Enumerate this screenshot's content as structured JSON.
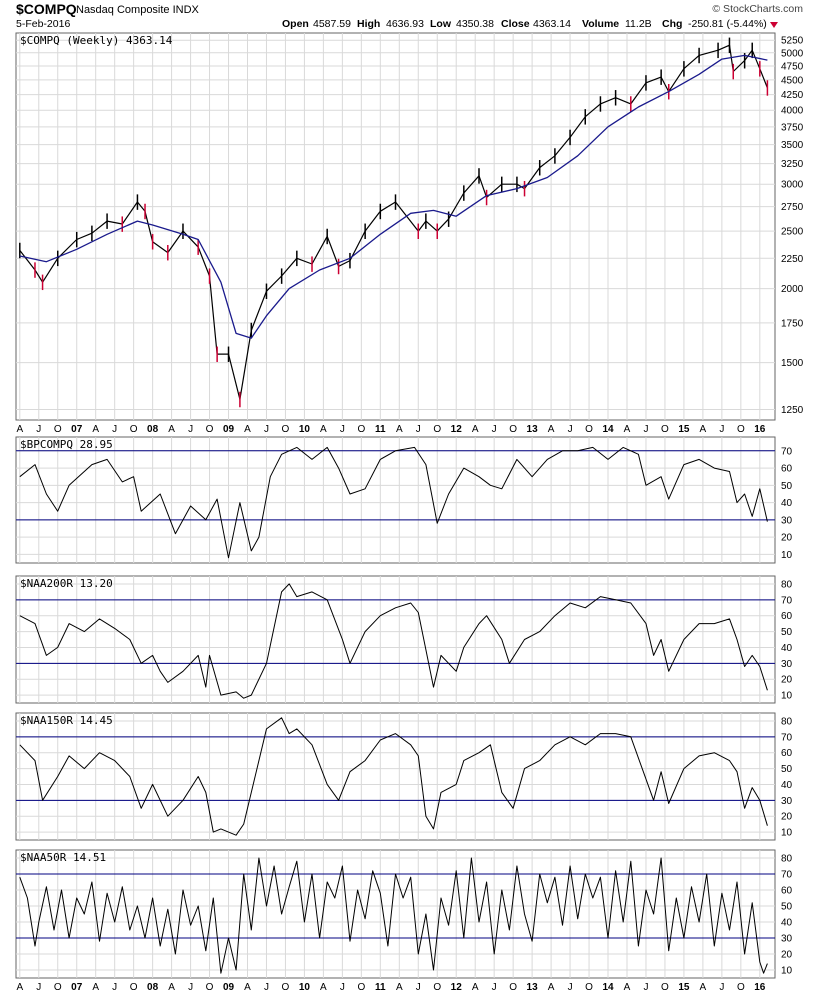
{
  "header": {
    "symbol": "$COMPQ",
    "name": "Nasdaq Composite INDX",
    "date": "5-Feb-2016",
    "source": "© StockCharts.com",
    "open_label": "Open",
    "open": "4587.59",
    "high_label": "High",
    "high": "4636.93",
    "low_label": "Low",
    "low": "4350.38",
    "close_label": "Close",
    "close": "4363.14",
    "volume_label": "Volume",
    "volume": "11.2B",
    "chg_label": "Chg",
    "chg": "-250.81 (-5.44%)"
  },
  "colors": {
    "up_bar": "#000000",
    "down_bar": "#cc0033",
    "moving_average": "#1a1a8c",
    "reference_line": "#000080",
    "grid": "#d9d9d9",
    "indicator_line": "#000000",
    "down_arrow": "#cc0033"
  },
  "x_axis_labels": [
    "A",
    "J",
    "O",
    "07",
    "A",
    "J",
    "O",
    "08",
    "A",
    "J",
    "O",
    "09",
    "A",
    "J",
    "O",
    "10",
    "A",
    "J",
    "O",
    "11",
    "A",
    "J",
    "O",
    "12",
    "A",
    "J",
    "O",
    "13",
    "A",
    "J",
    "O",
    "14",
    "A",
    "J",
    "O",
    "15",
    "A",
    "J",
    "O",
    "16"
  ],
  "chart_data": [
    {
      "type": "line",
      "panel": "price",
      "title": "$COMPQ (Weekly) 4363.14",
      "note": "Weekly price bars with a moving average line; approximate values read from the price axis (log scale). x values are years.",
      "y_scale": "log",
      "ylim": [
        1200,
        5400
      ],
      "yticks": [
        1250,
        1500,
        1750,
        2000,
        2250,
        2500,
        2750,
        3000,
        3250,
        3500,
        3750,
        4000,
        4250,
        4500,
        4750,
        5000,
        5250
      ],
      "series": [
        {
          "name": "$COMPQ",
          "x": [
            2006.25,
            2006.45,
            2006.55,
            2006.75,
            2007.0,
            2007.2,
            2007.4,
            2007.6,
            2007.8,
            2007.9,
            2008.0,
            2008.2,
            2008.4,
            2008.6,
            2008.75,
            2008.85,
            2009.0,
            2009.15,
            2009.3,
            2009.5,
            2009.7,
            2009.9,
            2010.1,
            2010.3,
            2010.45,
            2010.6,
            2010.8,
            2011.0,
            2011.2,
            2011.5,
            2011.6,
            2011.75,
            2011.9,
            2012.1,
            2012.3,
            2012.4,
            2012.6,
            2012.8,
            2012.9,
            2013.1,
            2013.3,
            2013.5,
            2013.7,
            2013.9,
            2014.1,
            2014.3,
            2014.5,
            2014.7,
            2014.8,
            2015.0,
            2015.2,
            2015.45,
            2015.6,
            2015.65,
            2015.8,
            2015.9,
            2016.0,
            2016.1
          ],
          "values": [
            2320,
            2150,
            2050,
            2250,
            2420,
            2480,
            2600,
            2570,
            2800,
            2700,
            2400,
            2300,
            2500,
            2350,
            2100,
            1550,
            1550,
            1300,
            1700,
            1980,
            2100,
            2250,
            2200,
            2450,
            2180,
            2230,
            2500,
            2700,
            2800,
            2500,
            2600,
            2500,
            2620,
            2900,
            3100,
            2850,
            3000,
            3000,
            2950,
            3200,
            3350,
            3600,
            3900,
            4100,
            4200,
            4100,
            4450,
            4550,
            4300,
            4700,
            4950,
            5050,
            5150,
            4650,
            4850,
            5050,
            4700,
            4363
          ]
        },
        {
          "name": "moving average",
          "x": [
            2006.25,
            2006.6,
            2007.0,
            2007.4,
            2007.8,
            2008.0,
            2008.4,
            2008.6,
            2008.9,
            2009.1,
            2009.3,
            2009.5,
            2009.8,
            2010.2,
            2010.6,
            2011.0,
            2011.4,
            2011.7,
            2012.0,
            2012.4,
            2012.8,
            2013.2,
            2013.6,
            2014.0,
            2014.4,
            2014.8,
            2015.2,
            2015.5,
            2015.8,
            2016.1
          ],
          "values": [
            2270,
            2220,
            2330,
            2470,
            2600,
            2560,
            2470,
            2420,
            2050,
            1680,
            1650,
            1800,
            2000,
            2150,
            2250,
            2470,
            2680,
            2710,
            2650,
            2870,
            2950,
            3080,
            3350,
            3750,
            4050,
            4300,
            4600,
            4880,
            4950,
            4860
          ]
        }
      ]
    },
    {
      "type": "line",
      "panel": "indicator",
      "title": "$BPCOMPQ 28.95",
      "ylim": [
        5,
        78
      ],
      "yticks": [
        10,
        20,
        30,
        40,
        50,
        60,
        70
      ],
      "reference_lines": [
        30,
        70
      ],
      "series": [
        {
          "name": "$BPCOMPQ",
          "x": [
            2006.25,
            2006.45,
            2006.6,
            2006.75,
            2006.9,
            2007.2,
            2007.4,
            2007.6,
            2007.75,
            2007.85,
            2008.1,
            2008.3,
            2008.5,
            2008.7,
            2008.85,
            2009.0,
            2009.15,
            2009.3,
            2009.4,
            2009.55,
            2009.7,
            2009.9,
            2010.1,
            2010.3,
            2010.45,
            2010.6,
            2010.8,
            2011.0,
            2011.2,
            2011.45,
            2011.6,
            2011.75,
            2011.9,
            2012.1,
            2012.3,
            2012.45,
            2012.6,
            2012.8,
            2013.0,
            2013.2,
            2013.4,
            2013.6,
            2013.8,
            2014.0,
            2014.2,
            2014.4,
            2014.5,
            2014.7,
            2014.8,
            2015.0,
            2015.2,
            2015.4,
            2015.6,
            2015.7,
            2015.8,
            2015.9,
            2016.0,
            2016.1
          ],
          "values": [
            55,
            62,
            45,
            35,
            50,
            62,
            65,
            52,
            55,
            35,
            45,
            22,
            38,
            30,
            42,
            8,
            40,
            12,
            20,
            55,
            68,
            72,
            65,
            72,
            60,
            45,
            48,
            65,
            70,
            72,
            62,
            28,
            45,
            60,
            55,
            50,
            48,
            65,
            55,
            65,
            70,
            70,
            72,
            65,
            72,
            68,
            50,
            55,
            42,
            62,
            65,
            60,
            58,
            40,
            45,
            32,
            48,
            29
          ]
        }
      ]
    },
    {
      "type": "line",
      "panel": "indicator",
      "title": "$NAA200R 13.20",
      "ylim": [
        5,
        85
      ],
      "yticks": [
        10,
        20,
        30,
        40,
        50,
        60,
        70,
        80
      ],
      "reference_lines": [
        30,
        70
      ],
      "series": [
        {
          "name": "$NAA200R",
          "x": [
            2006.25,
            2006.45,
            2006.6,
            2006.75,
            2006.9,
            2007.1,
            2007.3,
            2007.5,
            2007.7,
            2007.85,
            2008.0,
            2008.1,
            2008.2,
            2008.4,
            2008.6,
            2008.7,
            2008.75,
            2008.9,
            2009.1,
            2009.2,
            2009.3,
            2009.5,
            2009.7,
            2009.8,
            2009.9,
            2010.1,
            2010.3,
            2010.5,
            2010.6,
            2010.8,
            2011.0,
            2011.2,
            2011.4,
            2011.5,
            2011.7,
            2011.8,
            2012.0,
            2012.1,
            2012.3,
            2012.4,
            2012.6,
            2012.7,
            2012.9,
            2013.1,
            2013.3,
            2013.5,
            2013.7,
            2013.9,
            2014.1,
            2014.3,
            2014.5,
            2014.6,
            2014.7,
            2014.8,
            2015.0,
            2015.2,
            2015.4,
            2015.6,
            2015.7,
            2015.8,
            2015.9,
            2016.0,
            2016.1
          ],
          "values": [
            60,
            55,
            35,
            40,
            55,
            50,
            58,
            52,
            45,
            30,
            35,
            25,
            18,
            25,
            35,
            15,
            35,
            10,
            12,
            8,
            10,
            30,
            75,
            80,
            72,
            75,
            70,
            45,
            30,
            50,
            60,
            65,
            68,
            62,
            15,
            35,
            25,
            40,
            55,
            60,
            45,
            30,
            45,
            50,
            60,
            68,
            65,
            72,
            70,
            68,
            55,
            35,
            45,
            25,
            45,
            55,
            55,
            58,
            45,
            28,
            35,
            28,
            13
          ]
        }
      ]
    },
    {
      "type": "line",
      "panel": "indicator",
      "title": "$NAA150R 14.45",
      "ylim": [
        5,
        85
      ],
      "yticks": [
        10,
        20,
        30,
        40,
        50,
        60,
        70,
        80
      ],
      "reference_lines": [
        30,
        70
      ],
      "series": [
        {
          "name": "$NAA150R",
          "x": [
            2006.25,
            2006.45,
            2006.55,
            2006.75,
            2006.9,
            2007.1,
            2007.3,
            2007.5,
            2007.7,
            2007.85,
            2008.0,
            2008.2,
            2008.4,
            2008.6,
            2008.7,
            2008.8,
            2008.9,
            2009.1,
            2009.2,
            2009.3,
            2009.5,
            2009.7,
            2009.8,
            2009.9,
            2010.1,
            2010.3,
            2010.45,
            2010.6,
            2010.8,
            2011.0,
            2011.2,
            2011.4,
            2011.5,
            2011.6,
            2011.7,
            2011.8,
            2012.0,
            2012.1,
            2012.3,
            2012.45,
            2012.6,
            2012.75,
            2012.9,
            2013.1,
            2013.3,
            2013.5,
            2013.7,
            2013.9,
            2014.1,
            2014.3,
            2014.45,
            2014.6,
            2014.7,
            2014.8,
            2015.0,
            2015.2,
            2015.4,
            2015.6,
            2015.7,
            2015.8,
            2015.9,
            2016.0,
            2016.1
          ],
          "values": [
            65,
            55,
            30,
            45,
            58,
            50,
            60,
            55,
            45,
            25,
            40,
            20,
            30,
            45,
            35,
            10,
            12,
            8,
            15,
            35,
            75,
            82,
            72,
            75,
            65,
            40,
            30,
            48,
            55,
            68,
            72,
            65,
            58,
            20,
            12,
            35,
            40,
            55,
            60,
            65,
            35,
            25,
            50,
            55,
            65,
            70,
            65,
            72,
            72,
            70,
            50,
            30,
            48,
            28,
            50,
            58,
            60,
            55,
            48,
            25,
            38,
            30,
            14
          ]
        }
      ]
    },
    {
      "type": "line",
      "panel": "indicator",
      "title": "$NAA50R 14.51",
      "ylim": [
        5,
        85
      ],
      "yticks": [
        10,
        20,
        30,
        40,
        50,
        60,
        70,
        80
      ],
      "reference_lines": [
        30,
        70
      ],
      "series": [
        {
          "name": "$NAA50R",
          "x": [
            2006.25,
            2006.35,
            2006.45,
            2006.5,
            2006.6,
            2006.7,
            2006.8,
            2006.9,
            2007.0,
            2007.1,
            2007.2,
            2007.3,
            2007.4,
            2007.5,
            2007.6,
            2007.7,
            2007.8,
            2007.9,
            2008.0,
            2008.1,
            2008.2,
            2008.3,
            2008.4,
            2008.5,
            2008.6,
            2008.7,
            2008.8,
            2008.9,
            2009.0,
            2009.1,
            2009.2,
            2009.3,
            2009.4,
            2009.5,
            2009.6,
            2009.7,
            2009.8,
            2009.9,
            2010.0,
            2010.1,
            2010.2,
            2010.3,
            2010.4,
            2010.5,
            2010.6,
            2010.7,
            2010.8,
            2010.9,
            2011.0,
            2011.1,
            2011.2,
            2011.3,
            2011.4,
            2011.5,
            2011.6,
            2011.7,
            2011.8,
            2011.9,
            2012.0,
            2012.1,
            2012.2,
            2012.3,
            2012.4,
            2012.5,
            2012.6,
            2012.7,
            2012.8,
            2012.9,
            2013.0,
            2013.1,
            2013.2,
            2013.3,
            2013.4,
            2013.5,
            2013.6,
            2013.7,
            2013.8,
            2013.9,
            2014.0,
            2014.1,
            2014.2,
            2014.3,
            2014.4,
            2014.5,
            2014.6,
            2014.7,
            2014.8,
            2014.9,
            2015.0,
            2015.1,
            2015.2,
            2015.3,
            2015.4,
            2015.5,
            2015.6,
            2015.7,
            2015.8,
            2015.9,
            2016.0,
            2016.05,
            2016.1
          ],
          "values": [
            68,
            55,
            25,
            40,
            62,
            35,
            60,
            30,
            55,
            45,
            65,
            28,
            58,
            40,
            62,
            35,
            50,
            30,
            55,
            25,
            48,
            20,
            60,
            38,
            50,
            22,
            55,
            8,
            30,
            10,
            70,
            35,
            80,
            50,
            75,
            45,
            62,
            78,
            40,
            70,
            30,
            65,
            55,
            75,
            28,
            60,
            42,
            72,
            58,
            25,
            70,
            55,
            68,
            20,
            45,
            10,
            55,
            38,
            72,
            30,
            80,
            40,
            65,
            20,
            60,
            35,
            75,
            45,
            28,
            70,
            52,
            68,
            38,
            75,
            42,
            70,
            55,
            68,
            30,
            72,
            40,
            78,
            25,
            60,
            45,
            80,
            22,
            55,
            30,
            62,
            40,
            70,
            25,
            58,
            35,
            65,
            20,
            52,
            15,
            8,
            14
          ]
        }
      ]
    }
  ]
}
